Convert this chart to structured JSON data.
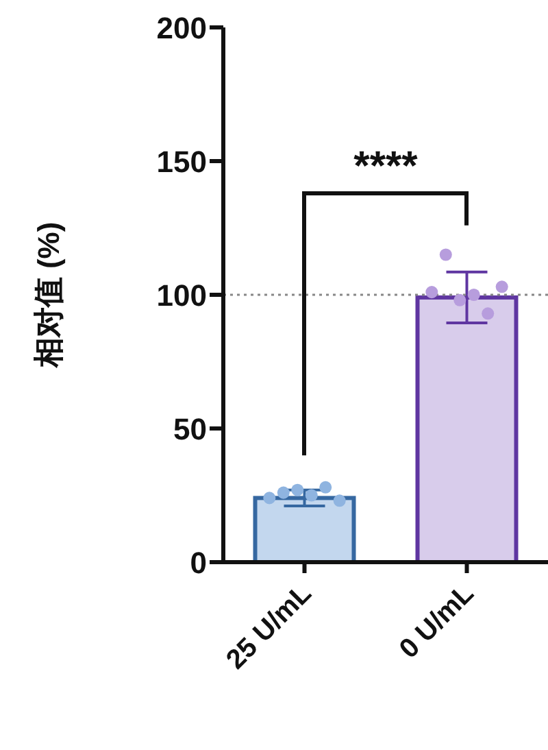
{
  "chart_data": {
    "type": "bar",
    "categories": [
      "25 U/mL",
      "0 U/mL"
    ],
    "ylabel": "相对值 (%)",
    "series": [
      {
        "type": "bar",
        "colors": [
          "#c3d7ee",
          "#d8cceb"
        ],
        "values": [
          24,
          99
        ],
        "errors": [
          3,
          9.5
        ]
      },
      {
        "type": "scatter",
        "x": [
          "25 U/mL",
          "25 U/mL",
          "25 U/mL",
          "25 U/mL",
          "25 U/mL",
          "25 U/mL",
          "0 U/mL",
          "0 U/mL",
          "0 U/mL",
          "0 U/mL",
          "0 U/mL",
          "0 U/mL"
        ],
        "colors": [
          "#8fb4e0",
          "#8fb4e0",
          "#8fb4e0",
          "#8fb4e0",
          "#8fb4e0",
          "#8fb4e0",
          "#b79ddd",
          "#b79ddd",
          "#b79ddd",
          "#b79ddd",
          "#b79ddd",
          "#b79ddd"
        ],
        "values": [
          24,
          26,
          27,
          25,
          28,
          23,
          101,
          115,
          98,
          100,
          93,
          103
        ]
      }
    ],
    "ylim": [
      0,
      200
    ],
    "yticks": [
      0,
      50,
      100,
      150,
      200
    ],
    "ref_lines": [
      {
        "axis": "y",
        "value": 100,
        "color": "#888888",
        "line_style": "dotted"
      }
    ],
    "annotations": [
      "****"
    ]
  }
}
